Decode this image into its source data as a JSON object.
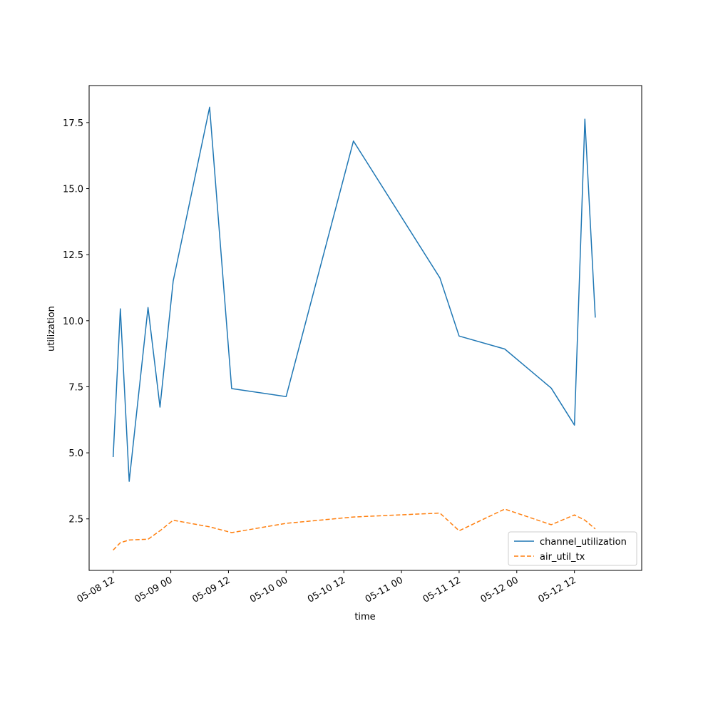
{
  "chart_data": {
    "type": "line",
    "title": "",
    "xlabel": "time",
    "ylabel": "utilization",
    "x_ticks": [
      "05-08 12",
      "05-09 00",
      "05-09 12",
      "05-10 00",
      "05-10 12",
      "05-11 00",
      "05-11 12",
      "05-12 00",
      "05-12 12"
    ],
    "y_ticks": [
      "2.5",
      "5.0",
      "7.5",
      "10.0",
      "12.5",
      "15.0",
      "17.5"
    ],
    "xlim": [
      "2024-05-08 07:00",
      "2024-05-13 02:00"
    ],
    "ylim": [
      0.55,
      18.9
    ],
    "grid": false,
    "legend_position": "lower right",
    "colors": {
      "channel_utilization": "#1f77b4",
      "air_util_tx": "#ff7f0e"
    },
    "series": [
      {
        "name": "channel_utilization",
        "style": "solid",
        "color": "#1f77b4",
        "points": [
          [
            "2024-05-08 12:00",
            4.84
          ],
          [
            "2024-05-08 13:30",
            10.45
          ],
          [
            "2024-05-08 15:20",
            3.92
          ],
          [
            "2024-05-08 19:15",
            10.5
          ],
          [
            "2024-05-08 21:45",
            6.73
          ],
          [
            "2024-05-09 00:30",
            11.5
          ],
          [
            "2024-05-09 08:05",
            18.08
          ],
          [
            "2024-05-09 12:40",
            7.43
          ],
          [
            "2024-05-10 00:00",
            7.13
          ],
          [
            "2024-05-10 14:00",
            16.8
          ],
          [
            "2024-05-11 08:00",
            11.62
          ],
          [
            "2024-05-11 12:00",
            9.42
          ],
          [
            "2024-05-11 21:30",
            8.93
          ],
          [
            "2024-05-12 07:10",
            7.45
          ],
          [
            "2024-05-12 12:00",
            6.05
          ],
          [
            "2024-05-12 14:10",
            17.63
          ],
          [
            "2024-05-12 16:20",
            10.12
          ]
        ]
      },
      {
        "name": "air_util_tx",
        "style": "dashed",
        "color": "#ff7f0e",
        "points": [
          [
            "2024-05-08 12:00",
            1.32
          ],
          [
            "2024-05-08 13:30",
            1.6
          ],
          [
            "2024-05-08 15:20",
            1.7
          ],
          [
            "2024-05-08 19:15",
            1.73
          ],
          [
            "2024-05-08 21:45",
            2.05
          ],
          [
            "2024-05-09 00:30",
            2.45
          ],
          [
            "2024-05-09 08:05",
            2.2
          ],
          [
            "2024-05-09 12:40",
            1.98
          ],
          [
            "2024-05-10 00:00",
            2.33
          ],
          [
            "2024-05-10 14:00",
            2.57
          ],
          [
            "2024-05-11 08:00",
            2.72
          ],
          [
            "2024-05-11 12:00",
            2.05
          ],
          [
            "2024-05-11 21:30",
            2.87
          ],
          [
            "2024-05-12 07:10",
            2.28
          ],
          [
            "2024-05-12 12:00",
            2.65
          ],
          [
            "2024-05-12 14:10",
            2.45
          ],
          [
            "2024-05-12 16:20",
            2.12
          ]
        ]
      }
    ]
  }
}
